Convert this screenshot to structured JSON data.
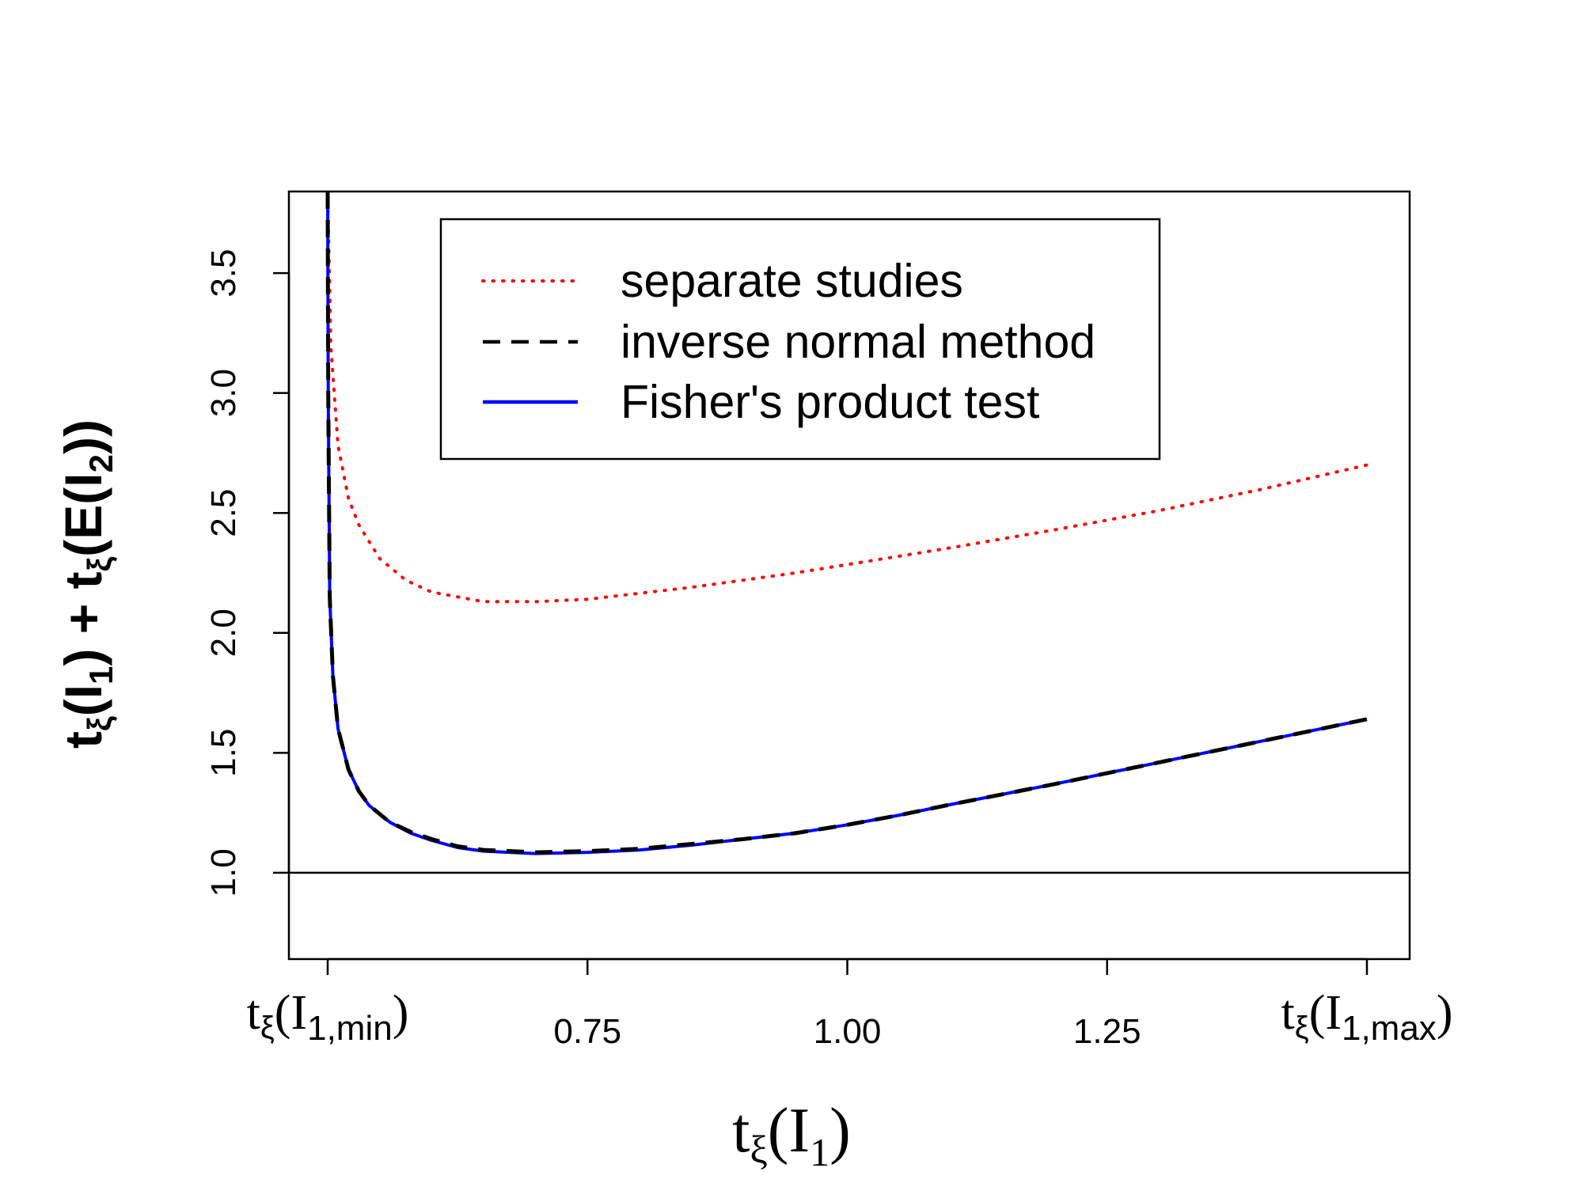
{
  "chart_data": {
    "type": "line",
    "title": "",
    "xlabel": "tξ(I1)",
    "ylabel": "tξ(I1) + tξ(E(I2))",
    "xlim": [
      0.5,
      1.5
    ],
    "ylim": [
      0.64,
      3.84
    ],
    "x_ticks": [
      {
        "value": 0.5,
        "label_parts": [
          "t",
          "ξ",
          "(I",
          "1,min",
          ")"
        ]
      },
      {
        "value": 0.75,
        "label": "0.75"
      },
      {
        "value": 1.0,
        "label": "1.00"
      },
      {
        "value": 1.25,
        "label": "1.25"
      },
      {
        "value": 1.5,
        "label_parts": [
          "t",
          "ξ",
          "(I",
          "1,max",
          ")"
        ]
      }
    ],
    "y_ticks": [
      {
        "value": 1.0,
        "label": "1.0"
      },
      {
        "value": 1.5,
        "label": "1.5"
      },
      {
        "value": 2.0,
        "label": "2.0"
      },
      {
        "value": 2.5,
        "label": "2.5"
      },
      {
        "value": 3.0,
        "label": "3.0"
      },
      {
        "value": 3.5,
        "label": "3.5"
      }
    ],
    "reference_line": {
      "y": 1.0,
      "color": "#000000"
    },
    "series": [
      {
        "name": "separate studies",
        "color": "#ff0000",
        "linestyle": "dotted",
        "x": [
          0.5,
          0.503,
          0.51,
          0.52,
          0.53,
          0.55,
          0.575,
          0.6,
          0.65,
          0.7,
          0.75,
          0.8,
          0.85,
          0.9,
          0.95,
          1.0,
          1.05,
          1.1,
          1.2,
          1.3,
          1.4,
          1.5
        ],
        "y": [
          3.84,
          3.2,
          2.78,
          2.56,
          2.45,
          2.31,
          2.22,
          2.17,
          2.13,
          2.13,
          2.14,
          2.165,
          2.19,
          2.22,
          2.25,
          2.285,
          2.32,
          2.355,
          2.43,
          2.51,
          2.6,
          2.7
        ]
      },
      {
        "name": "inverse normal method",
        "color": "#000000",
        "linestyle": "dashed",
        "x": [
          0.5,
          0.5005,
          0.502,
          0.505,
          0.51,
          0.52,
          0.53,
          0.54,
          0.56,
          0.58,
          0.6,
          0.625,
          0.65,
          0.7,
          0.75,
          0.8,
          0.85,
          0.9,
          0.95,
          1.0,
          1.05,
          1.1,
          1.2,
          1.3,
          1.4,
          1.5
        ],
        "y": [
          3.84,
          3.0,
          2.15,
          1.82,
          1.6,
          1.43,
          1.34,
          1.28,
          1.21,
          1.17,
          1.14,
          1.11,
          1.095,
          1.085,
          1.09,
          1.1,
          1.12,
          1.14,
          1.165,
          1.2,
          1.24,
          1.285,
          1.37,
          1.46,
          1.55,
          1.64
        ]
      },
      {
        "name": "Fisher's product test",
        "color": "#0000ff",
        "linestyle": "solid",
        "x": [
          0.5,
          0.5005,
          0.502,
          0.505,
          0.51,
          0.52,
          0.53,
          0.54,
          0.56,
          0.58,
          0.6,
          0.625,
          0.65,
          0.7,
          0.75,
          0.8,
          0.85,
          0.9,
          0.95,
          1.0,
          1.05,
          1.1,
          1.2,
          1.3,
          1.4,
          1.5
        ],
        "y": [
          3.84,
          3.0,
          2.15,
          1.82,
          1.6,
          1.43,
          1.34,
          1.28,
          1.21,
          1.165,
          1.135,
          1.105,
          1.09,
          1.08,
          1.085,
          1.095,
          1.115,
          1.14,
          1.165,
          1.2,
          1.24,
          1.285,
          1.37,
          1.46,
          1.55,
          1.64
        ]
      }
    ],
    "legend": {
      "position": "top",
      "entries": [
        "separate studies",
        "inverse normal method",
        "Fisher's product test"
      ]
    }
  }
}
